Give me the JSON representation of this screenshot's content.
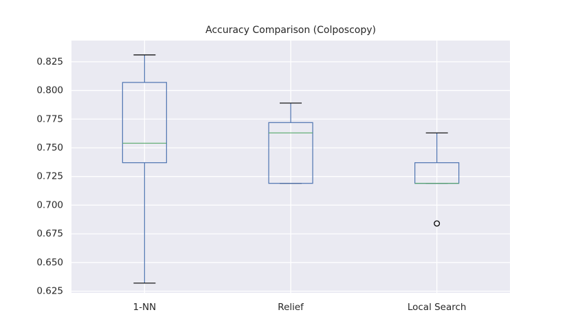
{
  "chart_data": {
    "type": "box",
    "title": "Accuracy Comparison (Colposcopy)",
    "xlabel": "",
    "ylabel": "",
    "ylim": [
      0.6235,
      0.8435
    ],
    "yticks": [
      0.625,
      0.65,
      0.675,
      0.7,
      0.725,
      0.75,
      0.775,
      0.8,
      0.825
    ],
    "ytick_labels": [
      "0.625",
      "0.650",
      "0.675",
      "0.700",
      "0.725",
      "0.750",
      "0.775",
      "0.800",
      "0.825"
    ],
    "grid": true,
    "categories": [
      "1-NN",
      "Relief",
      "Local Search"
    ],
    "boxes": [
      {
        "label": "1-NN",
        "whisker_low": 0.632,
        "q1": 0.737,
        "median": 0.754,
        "q3": 0.807,
        "whisker_high": 0.831,
        "fliers": []
      },
      {
        "label": "Relief",
        "whisker_low": 0.719,
        "q1": 0.719,
        "median": 0.763,
        "q3": 0.772,
        "whisker_high": 0.789,
        "fliers": []
      },
      {
        "label": "Local Search",
        "whisker_low": 0.719,
        "q1": 0.719,
        "median": 0.719,
        "q3": 0.737,
        "whisker_high": 0.763,
        "fliers": [
          0.684
        ]
      }
    ],
    "colors": {
      "plot_background": "#eaeaf2",
      "grid": "#ffffff",
      "box": "#4c72b0",
      "median": "#55a868",
      "cap": "#000000",
      "flier": "#000000",
      "text": "#262626"
    }
  }
}
